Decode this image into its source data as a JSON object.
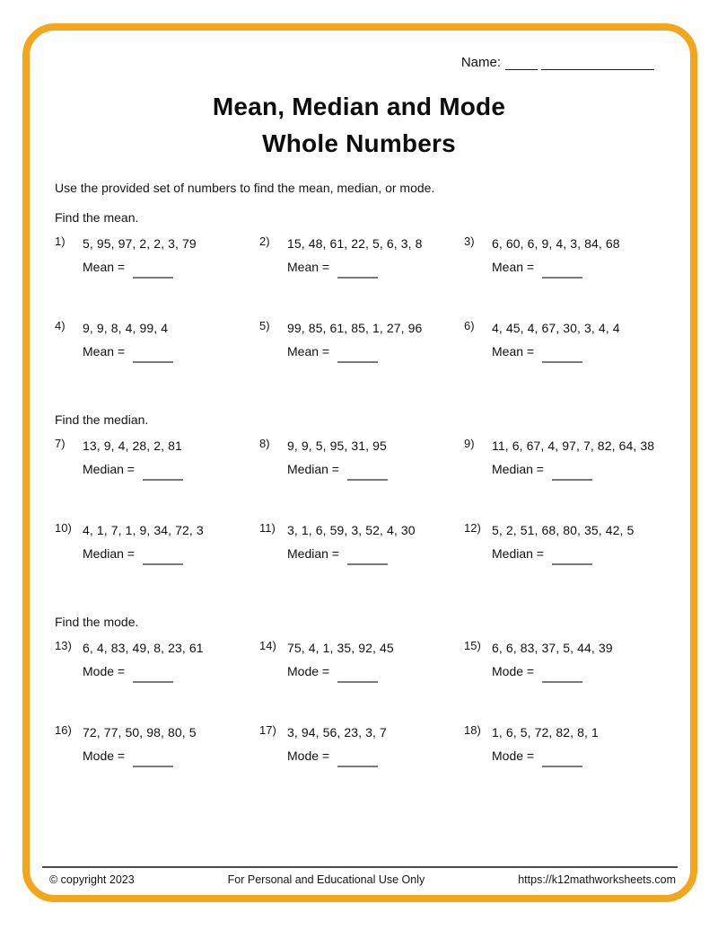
{
  "page": {
    "name_label": "Name:",
    "title_line1": "Mean, Median and Mode",
    "title_line2": "Whole Numbers",
    "instructions": "Use the provided set of numbers to find the mean, median, or mode.",
    "accent_color": "#F3A61C",
    "blank_line_color": "#7a7a7a"
  },
  "sections": [
    {
      "heading": "Find the mean.",
      "answer_label": "Mean =",
      "problems": [
        {
          "number": "1)",
          "values": "5, 95, 97, 2, 2, 3, 79"
        },
        {
          "number": "2)",
          "values": "15, 48, 61, 22, 5, 6, 3, 8"
        },
        {
          "number": "3)",
          "values": "6, 60, 6, 9, 4, 3, 84, 68"
        },
        {
          "number": "4)",
          "values": "9, 9, 8, 4, 99, 4"
        },
        {
          "number": "5)",
          "values": "99, 85, 61, 85, 1, 27, 96"
        },
        {
          "number": "6)",
          "values": "4, 45, 4, 67, 30, 3, 4, 4"
        }
      ]
    },
    {
      "heading": "Find the median.",
      "answer_label": "Median =",
      "problems": [
        {
          "number": "7)",
          "values": "13, 9, 4, 28, 2, 81"
        },
        {
          "number": "8)",
          "values": "9, 9, 5, 95, 31, 95"
        },
        {
          "number": "9)",
          "values": "11, 6, 67, 4, 97, 7, 82, 64, 38"
        },
        {
          "number": "10)",
          "values": "4, 1, 7, 1, 9, 34, 72, 3"
        },
        {
          "number": "11)",
          "values": "3, 1, 6, 59, 3, 52, 4, 30"
        },
        {
          "number": "12)",
          "values": "5, 2, 51, 68, 80, 35, 42, 5"
        }
      ]
    },
    {
      "heading": "Find the mode.",
      "answer_label": "Mode =",
      "problems": [
        {
          "number": "13)",
          "values": "6, 4, 83, 49, 8, 23, 61"
        },
        {
          "number": "14)",
          "values": "75, 4, 1, 35, 92, 45"
        },
        {
          "number": "15)",
          "values": "6, 6, 83, 37, 5, 44, 39"
        },
        {
          "number": "16)",
          "values": "72, 77, 50, 98, 80, 5"
        },
        {
          "number": "17)",
          "values": "3, 94, 56, 23, 3, 7"
        },
        {
          "number": "18)",
          "values": "1, 6, 5, 72, 82, 8, 1"
        }
      ]
    }
  ],
  "footer": {
    "copyright": "© copyright 2023",
    "usage": "For Personal and Educational Use Only",
    "url": "https://k12mathworksheets.com"
  }
}
